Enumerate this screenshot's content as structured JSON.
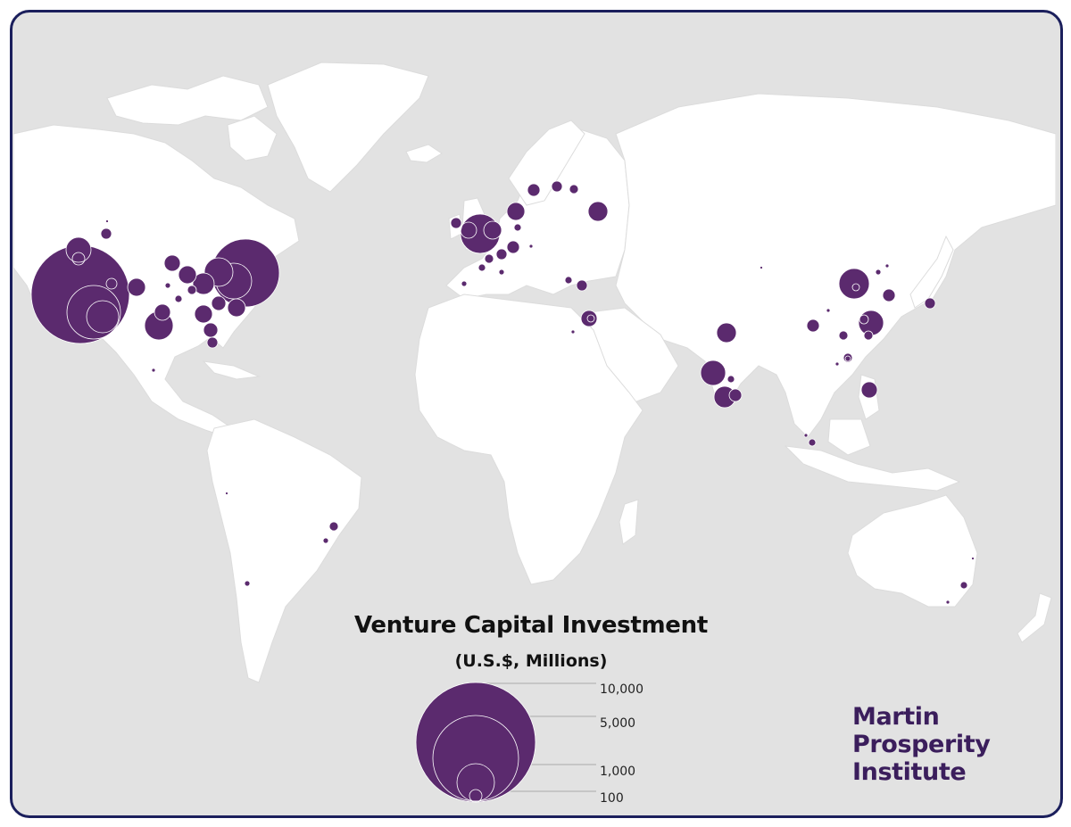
{
  "map": {
    "title": "Venture Capital Investment",
    "subtitle": "(U.S.$, Millions)",
    "ocean_color": "#e2e2e2",
    "land_color": "#ffffff",
    "bubble_color": "#5b2a6e",
    "frame_color": "#1b1f5c"
  },
  "legend": {
    "labels": [
      "10,000",
      "5,000",
      "1,000",
      "100"
    ]
  },
  "brand": {
    "line1": "Martin",
    "line2": "Prosperity",
    "line3": "Institute",
    "color": "#3b1e5c"
  }
}
